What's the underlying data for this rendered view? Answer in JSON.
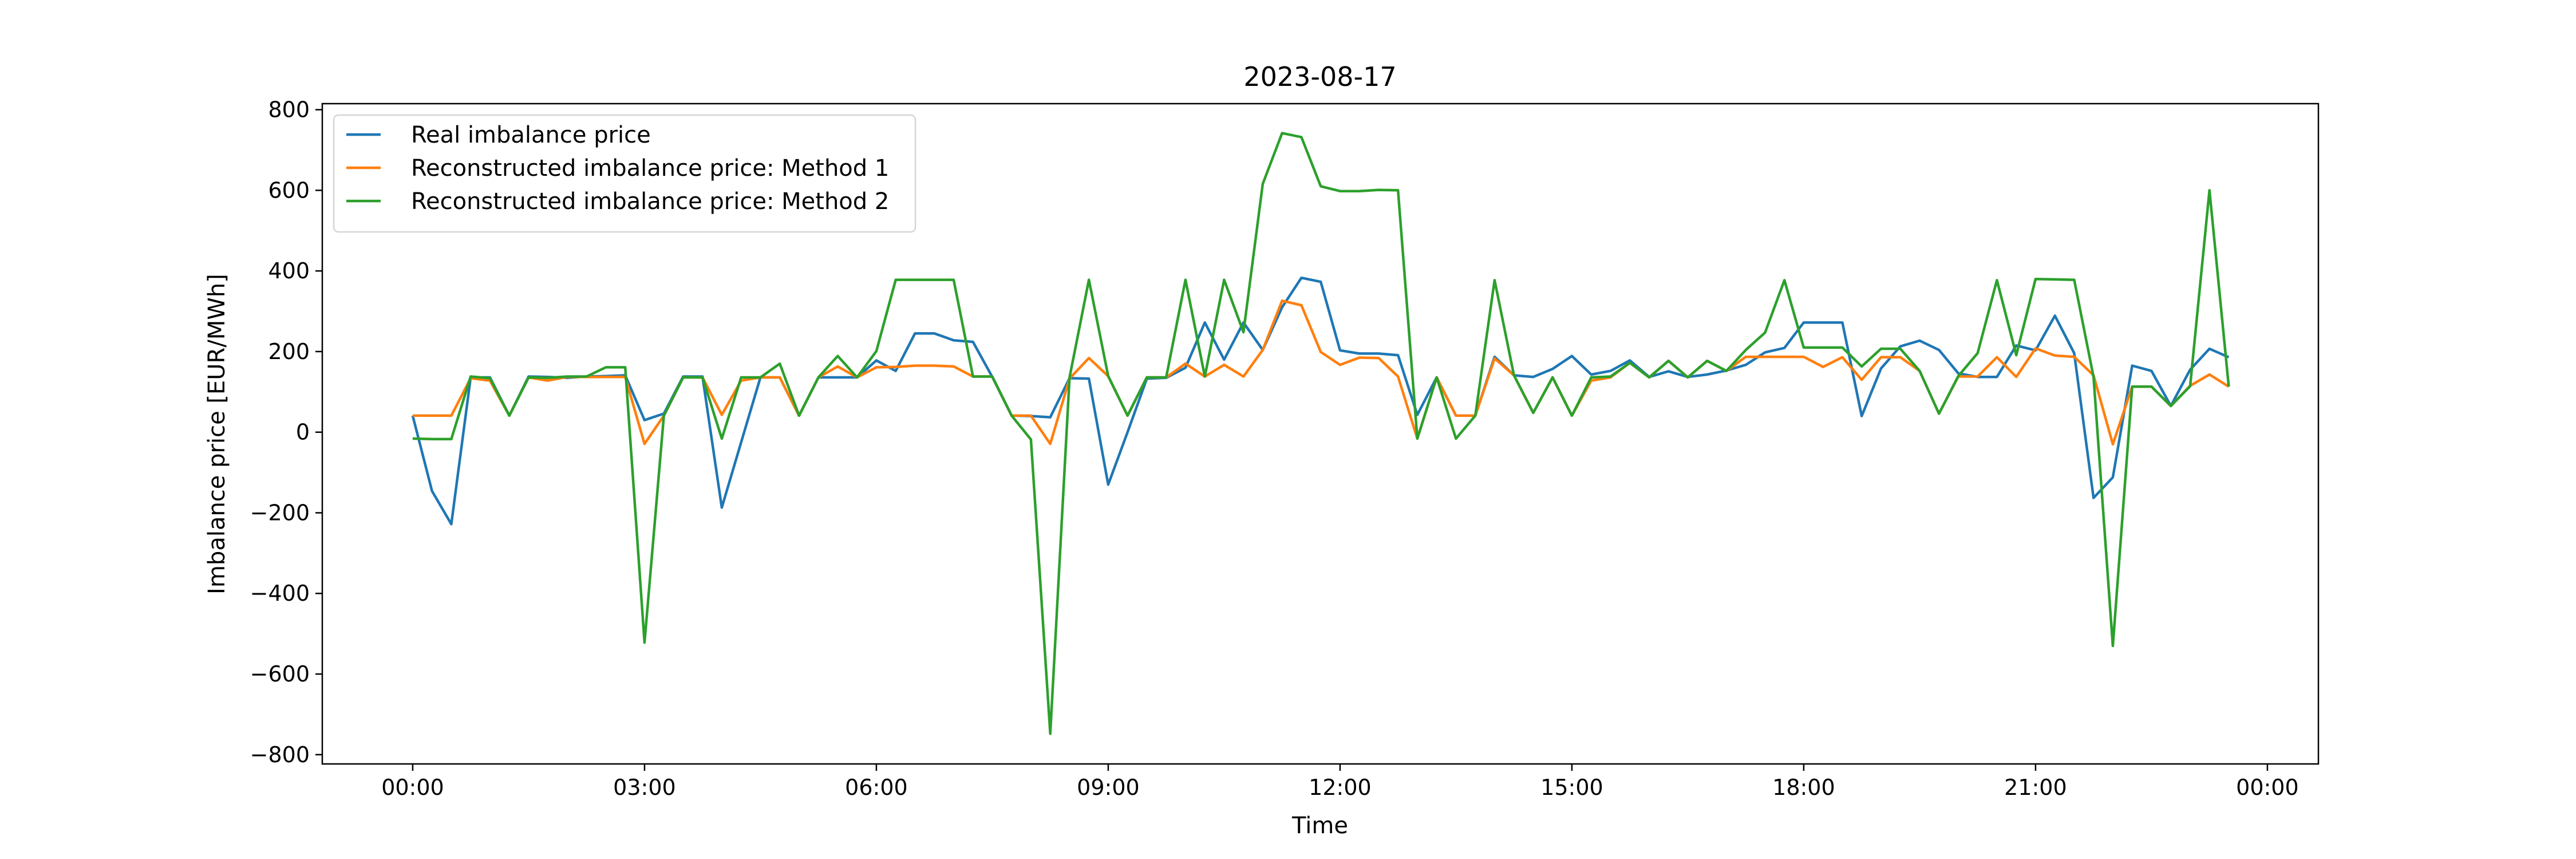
{
  "chart_data": {
    "type": "line",
    "title": "2023-08-17",
    "xlabel": "Time",
    "ylabel": "Imbalance price [EUR/MWh]",
    "ylim": [
      -823,
      815
    ],
    "xlim_hours": [
      -1.17,
      24.66
    ],
    "grid": false,
    "legend_position": "top-left",
    "x_tick_labels": [
      "00:00",
      "03:00",
      "06:00",
      "09:00",
      "12:00",
      "15:00",
      "18:00",
      "21:00",
      "00:00"
    ],
    "y_ticks": [
      800,
      600,
      400,
      200,
      0,
      -200,
      -400,
      -600,
      -800
    ],
    "y_tick_labels": [
      "800",
      "600",
      "400",
      "200",
      "0",
      "−200",
      "−400",
      "−600",
      "−800"
    ],
    "x": [
      "00:00",
      "00:15",
      "00:30",
      "00:45",
      "01:00",
      "01:15",
      "01:30",
      "01:45",
      "02:00",
      "02:15",
      "02:30",
      "02:45",
      "03:00",
      "03:15",
      "03:30",
      "03:45",
      "04:00",
      "04:15",
      "04:30",
      "04:45",
      "05:00",
      "05:15",
      "05:30",
      "05:45",
      "06:00",
      "06:15",
      "06:30",
      "06:45",
      "07:00",
      "07:15",
      "07:30",
      "07:45",
      "08:00",
      "08:15",
      "08:30",
      "08:45",
      "09:00",
      "09:15",
      "09:30",
      "09:45",
      "10:00",
      "10:15",
      "10:30",
      "10:45",
      "11:00",
      "11:15",
      "11:30",
      "11:45",
      "12:00",
      "12:15",
      "12:30",
      "12:45",
      "13:00",
      "13:15",
      "13:30",
      "13:45",
      "14:00",
      "14:15",
      "14:30",
      "14:45",
      "15:00",
      "15:15",
      "15:30",
      "15:45",
      "16:00",
      "16:15",
      "16:30",
      "16:45",
      "17:00",
      "17:15",
      "17:30",
      "17:45",
      "18:00",
      "18:15",
      "18:30",
      "18:45",
      "19:00",
      "19:15",
      "19:30",
      "19:45",
      "20:00",
      "20:15",
      "20:30",
      "20:45",
      "21:00",
      "21:15",
      "21:30",
      "21:45",
      "22:00",
      "22:15",
      "22:30",
      "22:45",
      "23:00",
      "23:15",
      "23:30"
    ],
    "series": [
      {
        "name": "Real imbalance price",
        "color": "#1f77b4",
        "values": [
          41,
          -146,
          -228,
          136,
          136,
          41,
          138,
          137,
          135,
          138,
          139,
          141,
          30,
          46,
          138,
          138,
          -187,
          -25,
          136,
          136,
          41,
          136,
          136,
          136,
          178,
          152,
          245,
          245,
          228,
          224,
          137,
          41,
          40,
          37,
          134,
          133,
          -130,
          0,
          133,
          135,
          160,
          272,
          180,
          272,
          204,
          310,
          383,
          373,
          203,
          195,
          195,
          191,
          43,
          136,
          41,
          41,
          187,
          141,
          137,
          157,
          189,
          143,
          152,
          178,
          137,
          151,
          137,
          143,
          153,
          167,
          198,
          209,
          272,
          272,
          272,
          40,
          158,
          213,
          227,
          204,
          146,
          137,
          137,
          215,
          203,
          289,
          196,
          -163,
          -112,
          165,
          152,
          65,
          155,
          207,
          186
        ]
      },
      {
        "name": "Reconstructed imbalance price: Method 1",
        "color": "#ff7f0e",
        "values": [
          41,
          41,
          41,
          134,
          128,
          41,
          136,
          128,
          137,
          137,
          137,
          137,
          -29,
          41,
          136,
          136,
          43,
          128,
          136,
          136,
          41,
          136,
          163,
          136,
          161,
          162,
          165,
          165,
          163,
          138,
          138,
          41,
          41,
          -29,
          133,
          184,
          139,
          41,
          136,
          136,
          170,
          138,
          167,
          138,
          204,
          326,
          315,
          199,
          167,
          185,
          184,
          138,
          -16,
          136,
          41,
          41,
          183,
          141,
          48,
          136,
          41,
          128,
          136,
          172,
          136,
          177,
          136,
          177,
          152,
          187,
          187,
          187,
          187,
          162,
          186,
          130,
          186,
          186,
          152,
          46,
          138,
          138,
          186,
          137,
          208,
          190,
          187,
          141,
          -30,
          113,
          113,
          65,
          115,
          143,
          113
        ]
      },
      {
        "name": "Reconstructed imbalance price: Method 2",
        "color": "#2ca02c",
        "values": [
          -16,
          -17,
          -17,
          138,
          134,
          41,
          136,
          135,
          138,
          138,
          161,
          161,
          -522,
          41,
          136,
          136,
          -16,
          136,
          136,
          170,
          41,
          136,
          189,
          136,
          201,
          378,
          378,
          378,
          378,
          138,
          138,
          41,
          -18,
          -748,
          136,
          378,
          139,
          41,
          136,
          136,
          378,
          138,
          378,
          248,
          616,
          742,
          732,
          610,
          598,
          598,
          601,
          600,
          -16,
          136,
          -16,
          41,
          377,
          141,
          48,
          136,
          41,
          136,
          138,
          172,
          136,
          177,
          136,
          177,
          152,
          204,
          247,
          377,
          210,
          210,
          210,
          163,
          207,
          207,
          152,
          46,
          139,
          196,
          377,
          191,
          380,
          379,
          378,
          137,
          -530,
          113,
          113,
          65,
          114,
          600,
          113
        ]
      }
    ]
  }
}
